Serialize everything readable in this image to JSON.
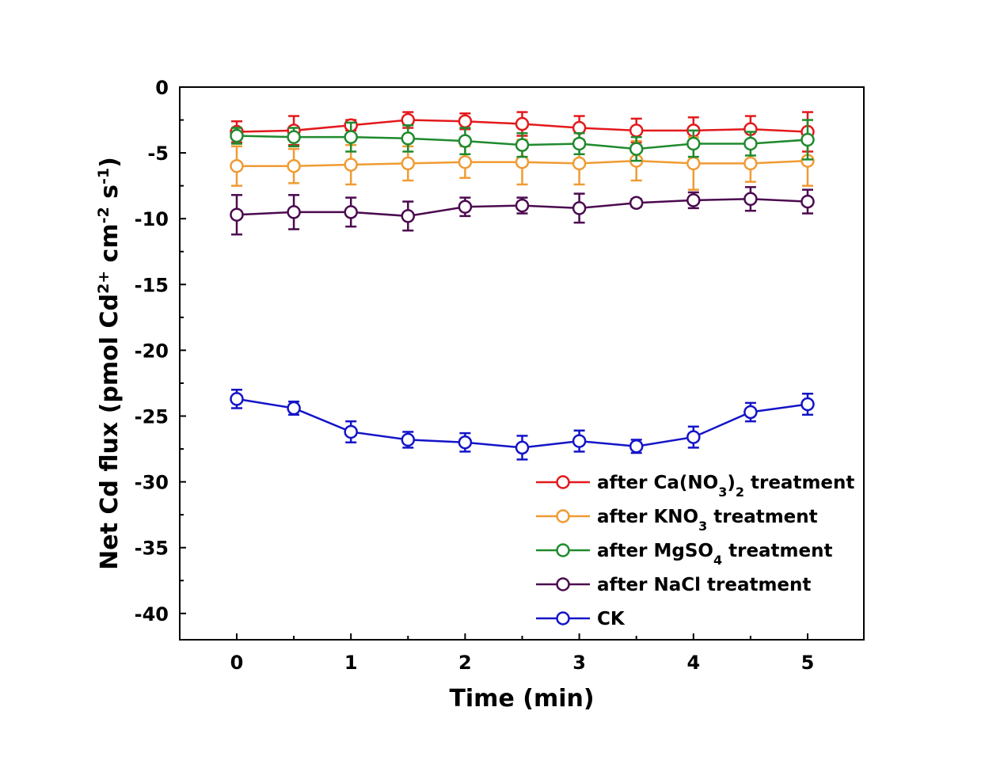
{
  "chart_data": {
    "type": "line",
    "xlabel": "Time (min)",
    "ylabel": {
      "prefix": "Net Cd flux (pmol Cd",
      "sup1": "2+",
      "mid": " cm",
      "sup2": "-2",
      "mid2": " s",
      "sup3": "-1",
      "suffix": ")"
    },
    "xlim": [
      -0.5,
      5.5
    ],
    "ylim": [
      -42,
      0
    ],
    "xticks": [
      0,
      1,
      2,
      3,
      4,
      5
    ],
    "xtick_labels": [
      "0",
      "1",
      "2",
      "3",
      "4",
      "5"
    ],
    "yticks": [
      0,
      -5,
      -10,
      -15,
      -20,
      -25,
      -30,
      -35,
      -40
    ],
    "ytick_labels": [
      "0",
      "-5",
      "-10",
      "-15",
      "-20",
      "-25",
      "-30",
      "-35",
      "-40"
    ],
    "grid": false,
    "legend_position": "bottom-right",
    "x": [
      0,
      0.5,
      1,
      1.5,
      2,
      2.5,
      3,
      3.5,
      4,
      4.5,
      5
    ],
    "series": [
      {
        "name": "after Ca(NO3)2 treatment",
        "legend_parts": [
          [
            "after Ca(NO",
            false
          ],
          [
            "3",
            true
          ],
          [
            ")",
            false
          ],
          [
            "2",
            true
          ],
          [
            " treatment",
            false
          ]
        ],
        "color": "#e3191c",
        "values": [
          -3.4,
          -3.3,
          -2.9,
          -2.5,
          -2.6,
          -2.8,
          -3.1,
          -3.3,
          -3.3,
          -3.2,
          -3.4
        ],
        "errors": [
          0.8,
          1.1,
          0.4,
          0.6,
          0.6,
          0.9,
          0.9,
          0.9,
          1.0,
          1.0,
          1.5
        ]
      },
      {
        "name": "after KNO3 treatment",
        "legend_parts": [
          [
            "after KNO",
            false
          ],
          [
            "3",
            true
          ],
          [
            " treatment",
            false
          ]
        ],
        "color": "#f09b33",
        "values": [
          -6.0,
          -6.0,
          -5.9,
          -5.8,
          -5.7,
          -5.7,
          -5.8,
          -5.6,
          -5.8,
          -5.8,
          -5.6
        ],
        "errors": [
          1.5,
          1.3,
          1.5,
          1.3,
          1.2,
          1.7,
          1.6,
          1.5,
          2.0,
          1.4,
          1.9
        ]
      },
      {
        "name": "after MgSO4 treatment",
        "legend_parts": [
          [
            "after MgSO",
            false
          ],
          [
            "4",
            true
          ],
          [
            " treatment",
            false
          ]
        ],
        "color": "#1f8a2e",
        "values": [
          -3.7,
          -3.8,
          -3.8,
          -3.9,
          -4.1,
          -4.4,
          -4.3,
          -4.7,
          -4.3,
          -4.3,
          -4.0
        ],
        "errors": [
          0.6,
          0.7,
          1.1,
          1.0,
          1.0,
          0.9,
          0.8,
          0.9,
          1.0,
          0.9,
          1.5
        ]
      },
      {
        "name": "after NaCl treatment",
        "legend_parts": [
          [
            "after NaCl treatment",
            false
          ]
        ],
        "color": "#4b0a4f",
        "values": [
          -9.7,
          -9.5,
          -9.5,
          -9.8,
          -9.1,
          -9.0,
          -9.2,
          -8.8,
          -8.6,
          -8.5,
          -8.7
        ],
        "errors": [
          1.5,
          1.3,
          1.1,
          1.1,
          0.7,
          0.6,
          1.1,
          0.3,
          0.6,
          0.9,
          0.9
        ]
      },
      {
        "name": "CK",
        "legend_parts": [
          [
            "CK",
            false
          ]
        ],
        "color": "#1414c8",
        "values": [
          -23.7,
          -24.4,
          -26.2,
          -26.8,
          -27.0,
          -27.4,
          -26.9,
          -27.3,
          -26.6,
          -24.7,
          -24.1
        ],
        "errors": [
          0.7,
          0.5,
          0.8,
          0.6,
          0.7,
          0.9,
          0.8,
          0.5,
          0.8,
          0.7,
          0.8
        ]
      }
    ]
  }
}
